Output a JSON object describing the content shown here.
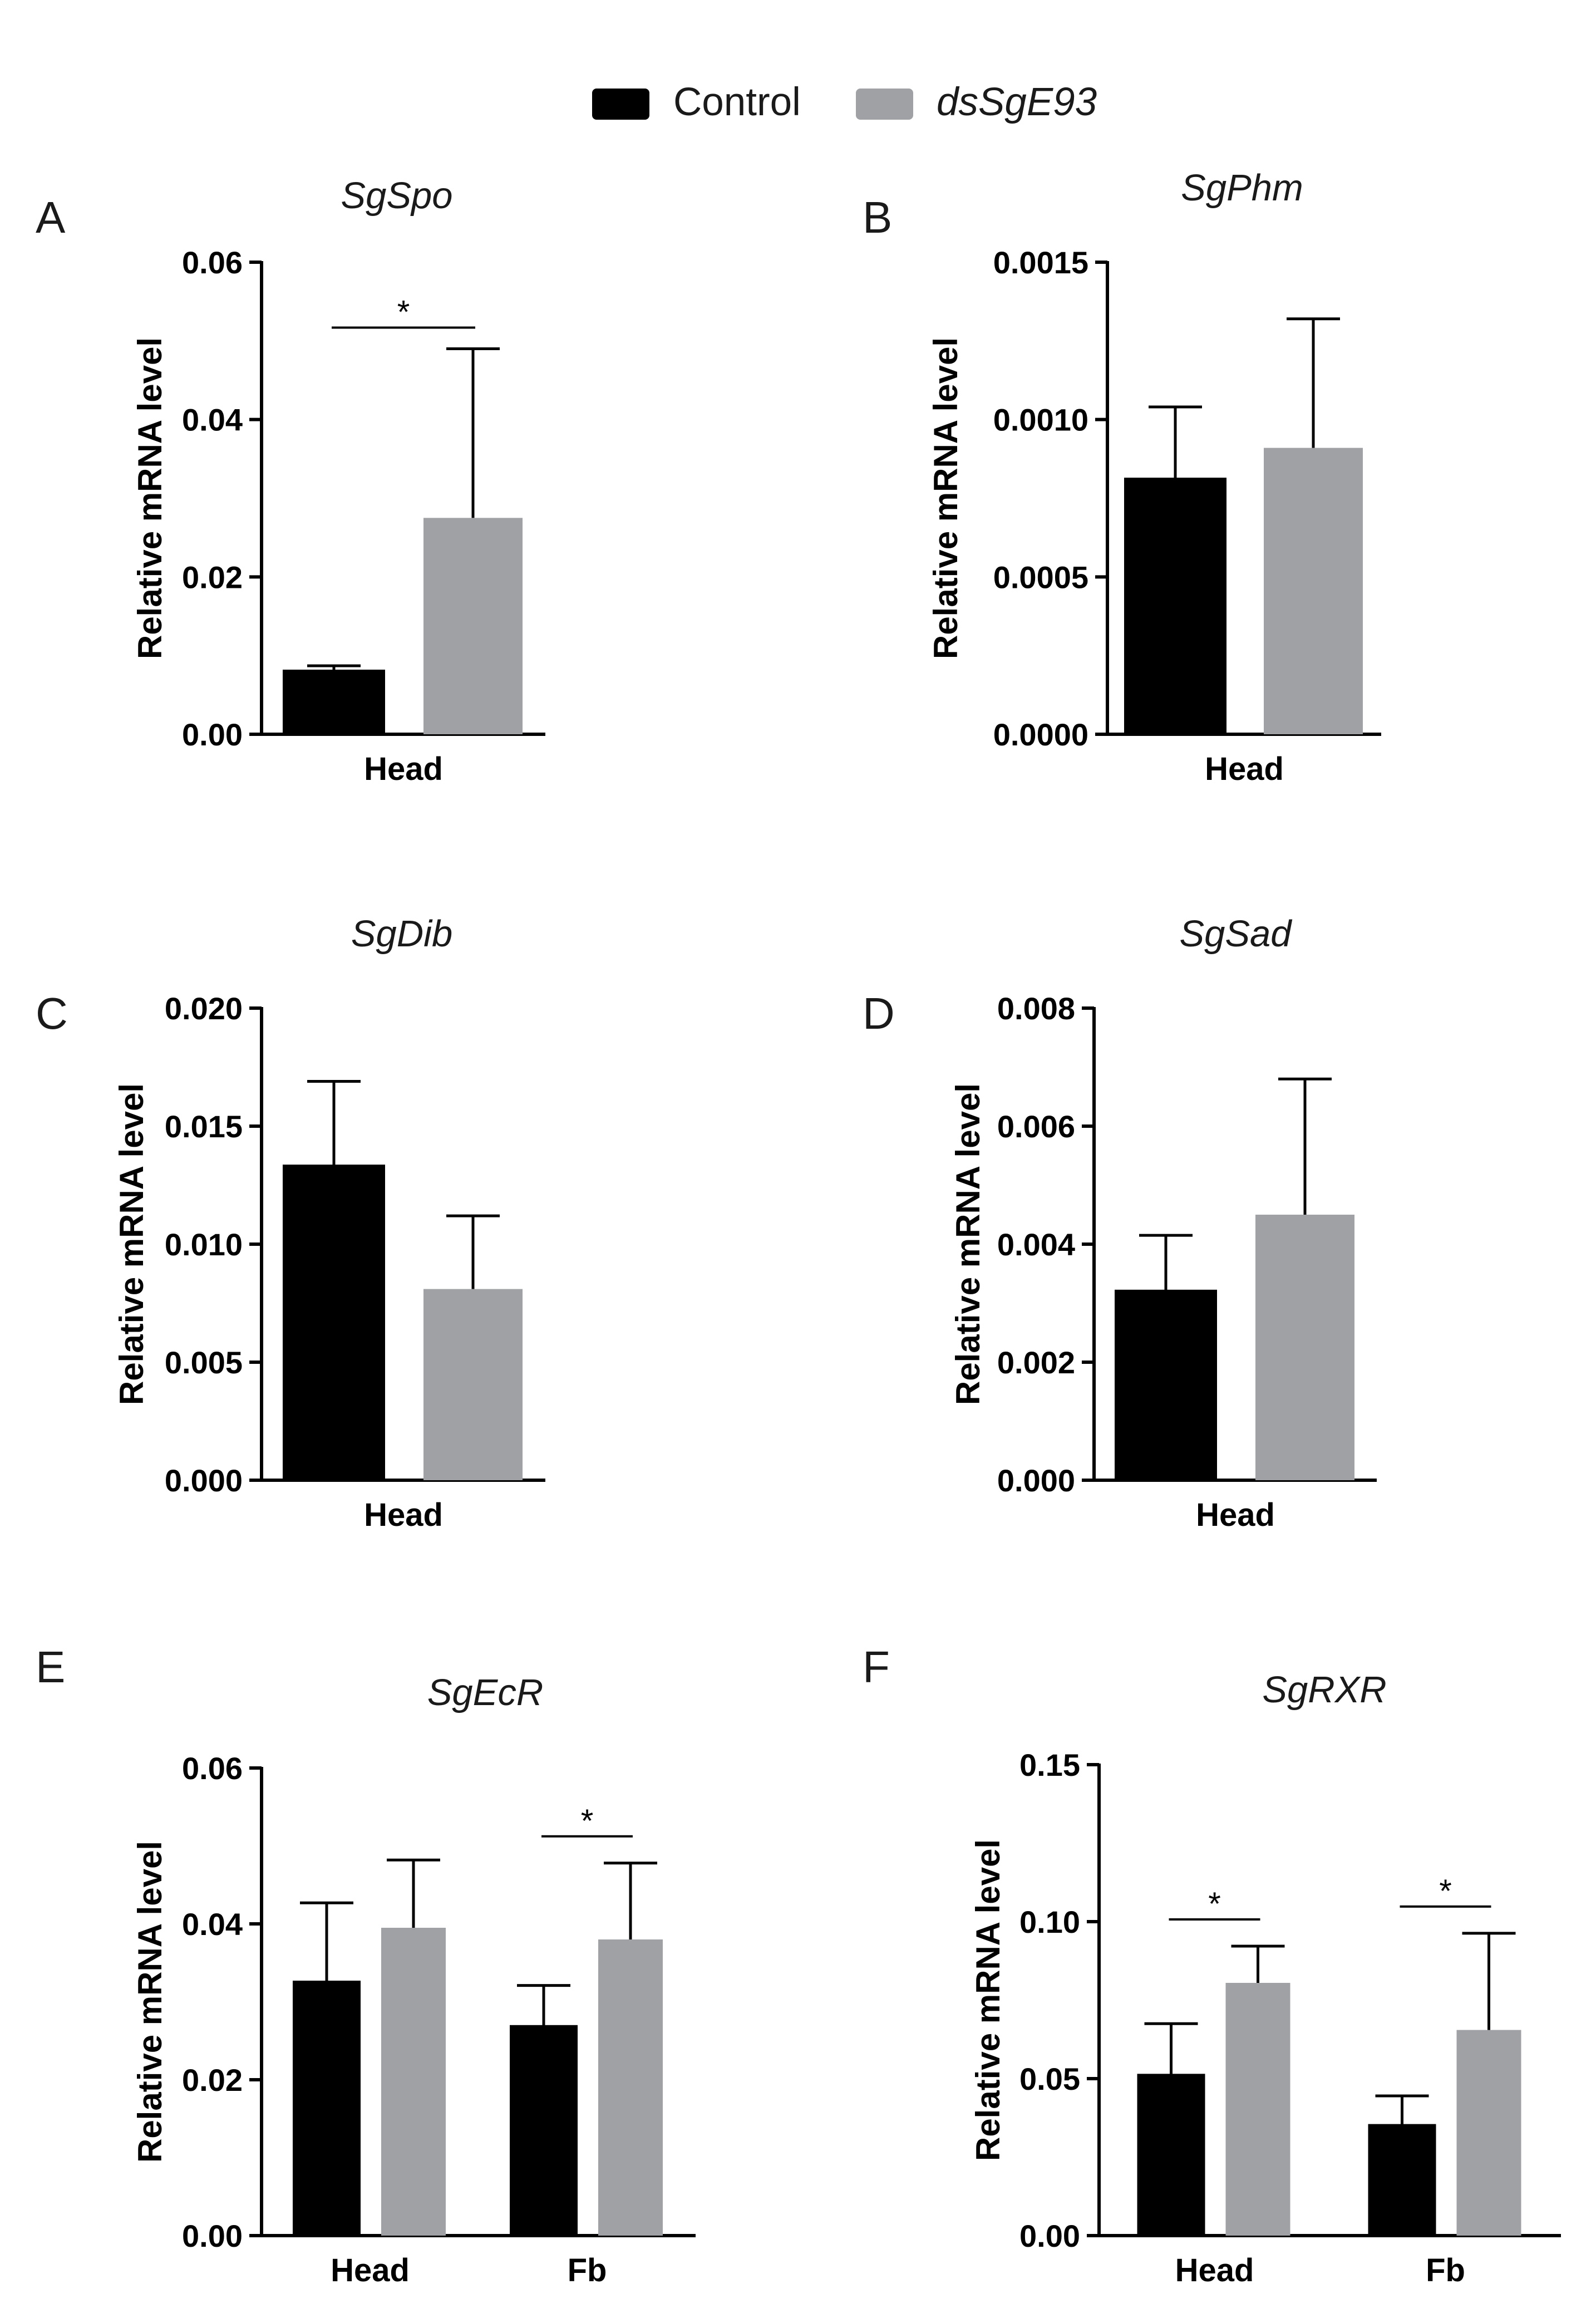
{
  "legend": {
    "items": [
      {
        "label": "Control",
        "color": "#000000",
        "italic": false
      },
      {
        "label": "dsSgE93",
        "color": "#a0a1a4",
        "italic": true
      }
    ]
  },
  "chart_data": [
    {
      "panel": "A",
      "type": "bar",
      "title": "SgSpo",
      "ylabel": "Relative mRNA level",
      "xlabel": "",
      "ylim": [
        0,
        0.06
      ],
      "ticks": [
        0,
        0.02,
        0.04,
        0.06
      ],
      "tick_labels": [
        "0.00",
        "0.02",
        "0.04",
        "0.06"
      ],
      "categories": [
        "Head"
      ],
      "series": [
        {
          "name": "Control",
          "values": [
            0.008
          ],
          "errors": [
            0.0007
          ]
        },
        {
          "name": "dsSgE93",
          "values": [
            0.0275
          ],
          "errors": [
            0.0215
          ]
        }
      ],
      "significance": [
        {
          "category": "Head",
          "label": "*"
        }
      ]
    },
    {
      "panel": "B",
      "type": "bar",
      "title": "SgPhm",
      "ylabel": "Relative mRNA level",
      "xlabel": "",
      "ylim": [
        0,
        0.0015
      ],
      "ticks": [
        0,
        0.0005,
        0.001,
        0.0015
      ],
      "tick_labels": [
        "0.0000",
        "0.0005",
        "0.0010",
        "0.0015"
      ],
      "categories": [
        "Head"
      ],
      "series": [
        {
          "name": "Control",
          "values": [
            0.00081
          ],
          "errors": [
            0.00023
          ]
        },
        {
          "name": "dsSgE93",
          "values": [
            0.00091
          ],
          "errors": [
            0.00041
          ]
        }
      ],
      "significance": []
    },
    {
      "panel": "C",
      "type": "bar",
      "title": "SgDib",
      "ylabel": "Relative mRNA level",
      "xlabel": "",
      "ylim": [
        0,
        0.02
      ],
      "ticks": [
        0,
        0.005,
        0.01,
        0.015,
        0.02
      ],
      "tick_labels": [
        "0.000",
        "0.005",
        "0.010",
        "0.015",
        "0.020"
      ],
      "categories": [
        "Head"
      ],
      "series": [
        {
          "name": "Control",
          "values": [
            0.0133
          ],
          "errors": [
            0.0036
          ]
        },
        {
          "name": "dsSgE93",
          "values": [
            0.0081
          ],
          "errors": [
            0.0031
          ]
        }
      ],
      "significance": []
    },
    {
      "panel": "D",
      "type": "bar",
      "title": "SgSad",
      "ylabel": "Relative mRNA level",
      "xlabel": "",
      "ylim": [
        0,
        0.008
      ],
      "ticks": [
        0,
        0.002,
        0.004,
        0.006,
        0.008
      ],
      "tick_labels": [
        "0.000",
        "0.002",
        "0.004",
        "0.006",
        "0.008"
      ],
      "categories": [
        "Head"
      ],
      "series": [
        {
          "name": "Control",
          "values": [
            0.0032
          ],
          "errors": [
            0.00095
          ]
        },
        {
          "name": "dsSgE93",
          "values": [
            0.0045
          ],
          "errors": [
            0.0023
          ]
        }
      ],
      "significance": []
    },
    {
      "panel": "E",
      "type": "bar",
      "title": "SgEcR",
      "ylabel": "Relative mRNA level",
      "xlabel": "",
      "ylim": [
        0,
        0.06
      ],
      "ticks": [
        0,
        0.02,
        0.04,
        0.06
      ],
      "tick_labels": [
        "0.00",
        "0.02",
        "0.04",
        "0.06"
      ],
      "categories": [
        "Head",
        "Fb"
      ],
      "series": [
        {
          "name": "Control",
          "values": [
            0.0325,
            0.0268
          ],
          "errors": [
            0.0102,
            0.0053
          ]
        },
        {
          "name": "dsSgE93",
          "values": [
            0.0395,
            0.038
          ],
          "errors": [
            0.0087,
            0.0098
          ]
        }
      ],
      "significance": [
        {
          "category": "Fb",
          "label": "*"
        }
      ]
    },
    {
      "panel": "F",
      "type": "bar",
      "title": "SgRXR",
      "ylabel": "Relative mRNA level",
      "xlabel": "",
      "ylim": [
        0,
        0.15
      ],
      "ticks": [
        0,
        0.05,
        0.1,
        0.15
      ],
      "tick_labels": [
        "0.00",
        "0.05",
        "0.10",
        "0.15"
      ],
      "categories": [
        "Head",
        "Fb"
      ],
      "series": [
        {
          "name": "Control",
          "values": [
            0.051,
            0.035
          ],
          "errors": [
            0.0165,
            0.0095
          ]
        },
        {
          "name": "dsSgE93",
          "values": [
            0.0805,
            0.0655
          ],
          "errors": [
            0.0117,
            0.0308
          ]
        }
      ],
      "significance": [
        {
          "category": "Head",
          "label": "*"
        },
        {
          "category": "Fb",
          "label": "*"
        }
      ]
    }
  ]
}
